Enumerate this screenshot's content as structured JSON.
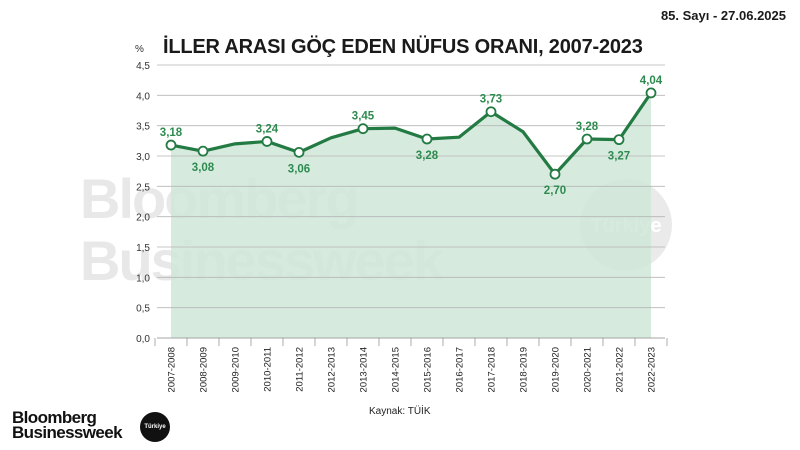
{
  "header": {
    "issue": "85. Sayı - 27.06.2025",
    "title": "İLLER ARASI GÖÇ EDEN NÜFUS ORANI, 2007-2023",
    "unit": "%"
  },
  "footer": {
    "source": "Kaynak: TÜİK",
    "brand_line1": "Bloomberg",
    "brand_line2": "Businessweek",
    "brand_badge": "Türkiye"
  },
  "watermark": {
    "line1": "Bloomberg",
    "line2": "Businessweek",
    "badge": "Türkiye"
  },
  "colors": {
    "line": "#237a43",
    "area": "#cfe8d8",
    "label": "#2e8b50",
    "grid": "#b5b5b5",
    "text": "#1a1a1a"
  },
  "chart_data": {
    "type": "area",
    "title": "İLLER ARASI GÖÇ EDEN NÜFUS ORANI, 2007-2023",
    "xlabel": "",
    "ylabel": "%",
    "ylim": [
      0,
      4.5
    ],
    "yticks": [
      "0,0",
      "0,5",
      "1,0",
      "1,5",
      "2,0",
      "2,5",
      "3,0",
      "3,5",
      "4,0",
      "4,5"
    ],
    "grid": true,
    "legend": null,
    "source": "Kaynak: TÜİK",
    "categories": [
      "2007-2008",
      "2008-2009",
      "2009-2010",
      "2010-2011",
      "2011-2012",
      "2012-2013",
      "2013-2014",
      "2014-2015",
      "2015-2016",
      "2016-2017",
      "2017-2018",
      "2018-2019",
      "2019-2020",
      "2020-2021",
      "2021-2022",
      "2022-2023"
    ],
    "values": [
      3.18,
      3.08,
      3.2,
      3.24,
      3.06,
      3.3,
      3.45,
      3.46,
      3.28,
      3.31,
      3.73,
      3.4,
      2.7,
      3.28,
      3.27,
      4.04
    ],
    "labeled_points": [
      {
        "index": 0,
        "label": "3,18",
        "position": "above"
      },
      {
        "index": 1,
        "label": "3,08",
        "position": "below"
      },
      {
        "index": 3,
        "label": "3,24",
        "position": "above"
      },
      {
        "index": 4,
        "label": "3,06",
        "position": "below"
      },
      {
        "index": 6,
        "label": "3,45",
        "position": "above"
      },
      {
        "index": 8,
        "label": "3,28",
        "position": "below"
      },
      {
        "index": 10,
        "label": "3,73",
        "position": "above"
      },
      {
        "index": 12,
        "label": "2,70",
        "position": "below"
      },
      {
        "index": 13,
        "label": "3,28",
        "position": "above"
      },
      {
        "index": 14,
        "label": "3,27",
        "position": "below"
      },
      {
        "index": 15,
        "label": "4,04",
        "position": "above"
      }
    ]
  }
}
